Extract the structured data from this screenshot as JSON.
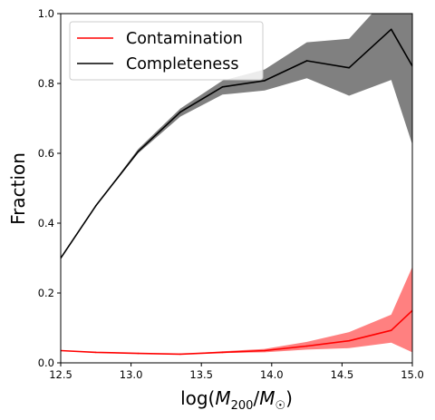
{
  "chart_data": {
    "type": "line",
    "xlabel": "log(M200/M☉)",
    "ylabel": "Fraction",
    "xlim": [
      12.5,
      15.0
    ],
    "ylim": [
      0.0,
      1.0
    ],
    "x_ticks": [
      "12.5",
      "13.0",
      "13.5",
      "14.0",
      "14.5",
      "15.0"
    ],
    "y_ticks": [
      "0.0",
      "0.2",
      "0.4",
      "0.6",
      "0.8",
      "1.0"
    ],
    "grid": false,
    "legend_position": "upper-left",
    "series": [
      {
        "name": "Contamination",
        "color": "#ff0000",
        "band_color": "#ff8080",
        "x": [
          12.5,
          12.75,
          13.05,
          13.35,
          13.65,
          13.95,
          14.25,
          14.55,
          14.85,
          15.0
        ],
        "y": [
          0.035,
          0.03,
          0.027,
          0.025,
          0.03,
          0.035,
          0.048,
          0.063,
          0.093,
          0.15
        ],
        "lower": [
          0.035,
          0.03,
          0.027,
          0.025,
          0.028,
          0.03,
          0.038,
          0.042,
          0.058,
          0.03
        ],
        "upper": [
          0.035,
          0.03,
          0.027,
          0.025,
          0.033,
          0.04,
          0.06,
          0.088,
          0.138,
          0.275
        ]
      },
      {
        "name": "Completeness",
        "color": "#000000",
        "band_color": "#808080",
        "x": [
          12.5,
          12.75,
          13.05,
          13.35,
          13.65,
          13.95,
          14.25,
          14.55,
          14.85,
          15.0
        ],
        "y": [
          0.3,
          0.45,
          0.605,
          0.718,
          0.79,
          0.808,
          0.865,
          0.845,
          0.955,
          0.85
        ],
        "lower": [
          0.3,
          0.45,
          0.6,
          0.705,
          0.768,
          0.78,
          0.815,
          0.765,
          0.81,
          0.625
        ],
        "upper": [
          0.3,
          0.45,
          0.612,
          0.728,
          0.808,
          0.84,
          0.918,
          0.928,
          1.06,
          1.06
        ]
      }
    ]
  }
}
